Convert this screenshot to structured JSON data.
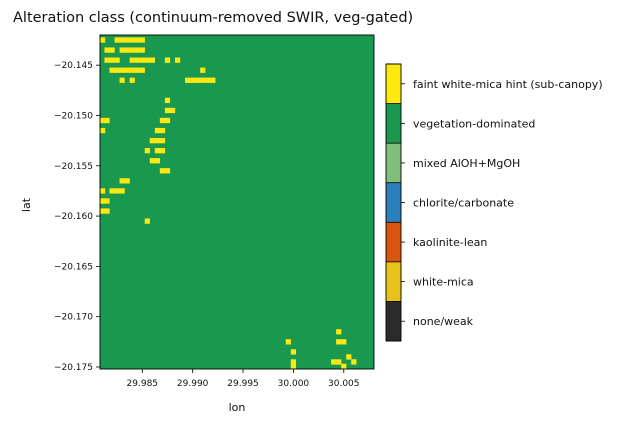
{
  "chart_data": {
    "type": "heatmap",
    "title": "Alteration class (continuum-removed SWIR, veg-gated)",
    "xlabel": "lon",
    "ylabel": "lat",
    "xlim": [
      29.9808,
      30.008
    ],
    "ylim": [
      -20.1752,
      -20.142
    ],
    "x_ticks": [
      {
        "value": 29.985,
        "label": "29.985"
      },
      {
        "value": 29.99,
        "label": "29.990"
      },
      {
        "value": 29.995,
        "label": "29.995"
      },
      {
        "value": 30.0,
        "label": "30.000"
      },
      {
        "value": 30.005,
        "label": "30.005"
      }
    ],
    "y_ticks": [
      {
        "value": -20.145,
        "label": "−20.145"
      },
      {
        "value": -20.15,
        "label": "−20.150"
      },
      {
        "value": -20.155,
        "label": "−20.155"
      },
      {
        "value": -20.16,
        "label": "−20.160"
      },
      {
        "value": -20.165,
        "label": "−20.165"
      },
      {
        "value": -20.17,
        "label": "−20.170"
      },
      {
        "value": -20.175,
        "label": "−20.175"
      }
    ],
    "classes": [
      {
        "id": 0,
        "name": "none/weak",
        "color": "#2b2b2b"
      },
      {
        "id": 1,
        "name": "white-mica",
        "color": "#e8c21a"
      },
      {
        "id": 2,
        "name": "kaolinite-lean",
        "color": "#d9540f"
      },
      {
        "id": 3,
        "name": "chlorite/carbonate",
        "color": "#2b7fbd"
      },
      {
        "id": 4,
        "name": "mixed AlOH+MgOH",
        "color": "#7fbf7b"
      },
      {
        "id": 5,
        "name": "vegetation-dominated",
        "color": "#1a9850"
      },
      {
        "id": 6,
        "name": "faint white-mica hint (sub-canopy)",
        "color": "#fde910"
      }
    ],
    "background_class": 5,
    "hint_class": 6,
    "grid": false,
    "legend": "colorbar-right",
    "hint_pixels": [
      [
        29.981,
        -20.1425
      ],
      [
        29.9815,
        -20.1435
      ],
      [
        29.982,
        -20.1435
      ],
      [
        29.9815,
        -20.1445
      ],
      [
        29.982,
        -20.1445
      ],
      [
        29.9825,
        -20.1445
      ],
      [
        29.982,
        -20.1455
      ],
      [
        29.9825,
        -20.1455
      ],
      [
        29.9825,
        -20.1425
      ],
      [
        29.983,
        -20.1425
      ],
      [
        29.9835,
        -20.1425
      ],
      [
        29.984,
        -20.1425
      ],
      [
        29.9845,
        -20.1425
      ],
      [
        29.985,
        -20.1425
      ],
      [
        29.983,
        -20.1435
      ],
      [
        29.9835,
        -20.1435
      ],
      [
        29.984,
        -20.1435
      ],
      [
        29.9845,
        -20.1435
      ],
      [
        29.985,
        -20.1435
      ],
      [
        29.984,
        -20.1445
      ],
      [
        29.9845,
        -20.1445
      ],
      [
        29.985,
        -20.1445
      ],
      [
        29.9855,
        -20.1445
      ],
      [
        29.986,
        -20.1445
      ],
      [
        29.983,
        -20.1455
      ],
      [
        29.9835,
        -20.1455
      ],
      [
        29.984,
        -20.1455
      ],
      [
        29.9845,
        -20.1455
      ],
      [
        29.985,
        -20.1455
      ],
      [
        29.983,
        -20.1465
      ],
      [
        29.984,
        -20.1465
      ],
      [
        29.9875,
        -20.1445
      ],
      [
        29.9885,
        -20.1445
      ],
      [
        29.991,
        -20.1455
      ],
      [
        29.9905,
        -20.1465
      ],
      [
        29.991,
        -20.1465
      ],
      [
        29.9915,
        -20.1465
      ],
      [
        29.992,
        -20.1465
      ],
      [
        29.9895,
        -20.1465
      ],
      [
        29.99,
        -20.1465
      ],
      [
        29.981,
        -20.1505
      ],
      [
        29.9815,
        -20.1505
      ],
      [
        29.981,
        -20.1515
      ],
      [
        29.9875,
        -20.1485
      ],
      [
        29.9875,
        -20.1495
      ],
      [
        29.988,
        -20.1495
      ],
      [
        29.987,
        -20.1505
      ],
      [
        29.9875,
        -20.1505
      ],
      [
        29.9865,
        -20.1515
      ],
      [
        29.987,
        -20.1515
      ],
      [
        29.986,
        -20.1525
      ],
      [
        29.9865,
        -20.1525
      ],
      [
        29.987,
        -20.1525
      ],
      [
        29.9855,
        -20.1535
      ],
      [
        29.9865,
        -20.1535
      ],
      [
        29.987,
        -20.1535
      ],
      [
        29.986,
        -20.1545
      ],
      [
        29.9865,
        -20.1545
      ],
      [
        29.987,
        -20.1555
      ],
      [
        29.9875,
        -20.1555
      ],
      [
        29.983,
        -20.1565
      ],
      [
        29.9835,
        -20.1565
      ],
      [
        29.9825,
        -20.1575
      ],
      [
        29.983,
        -20.1575
      ],
      [
        29.982,
        -20.1575
      ],
      [
        29.981,
        -20.1575
      ],
      [
        29.981,
        -20.1585
      ],
      [
        29.9815,
        -20.1585
      ],
      [
        29.981,
        -20.1595
      ],
      [
        29.9815,
        -20.1595
      ],
      [
        29.9805,
        -20.1585
      ],
      [
        29.9855,
        -20.1605
      ],
      [
        29.9995,
        -20.1725
      ],
      [
        30.0,
        -20.1735
      ],
      [
        30.0,
        -20.1745
      ],
      [
        30.0,
        -20.1752
      ],
      [
        30.0045,
        -20.1715
      ],
      [
        30.0045,
        -20.1725
      ],
      [
        30.005,
        -20.1725
      ],
      [
        30.004,
        -20.1745
      ],
      [
        30.0045,
        -20.1745
      ],
      [
        30.0055,
        -20.174
      ],
      [
        30.006,
        -20.1745
      ],
      [
        30.005,
        -20.1752
      ]
    ]
  }
}
